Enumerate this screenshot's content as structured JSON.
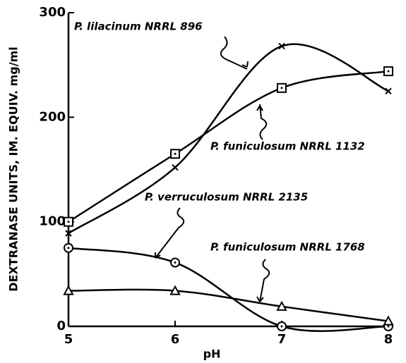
{
  "chart_data": {
    "type": "line",
    "x_label": "pH",
    "y_label": "DEXTRANASE UNITS, IM. EQUIV. mg/ml",
    "x": [
      5,
      6,
      7,
      8
    ],
    "xlim": [
      5,
      8
    ],
    "xticks": [
      5,
      6,
      7,
      8
    ],
    "ylim": [
      0,
      300
    ],
    "yticks": [
      0,
      100,
      200,
      300
    ],
    "grid": false,
    "series": [
      {
        "name": "P. lilacinum NRRL 896",
        "color": "#000000",
        "marker": "x",
        "values": [
          89,
          152,
          268,
          225
        ]
      },
      {
        "name": "P. funiculosum NRRL 1132",
        "color": "#000000",
        "marker": "square",
        "values": [
          100,
          165,
          228,
          244
        ]
      },
      {
        "name": "P. verruculosum NRRL 2135",
        "color": "#000000",
        "marker": "circle",
        "values": [
          75,
          61,
          0,
          0
        ]
      },
      {
        "name": "P. funiculosum NRRL 1768",
        "color": "#000000",
        "marker": "triangle",
        "values": [
          34,
          34,
          19,
          5
        ]
      }
    ]
  }
}
